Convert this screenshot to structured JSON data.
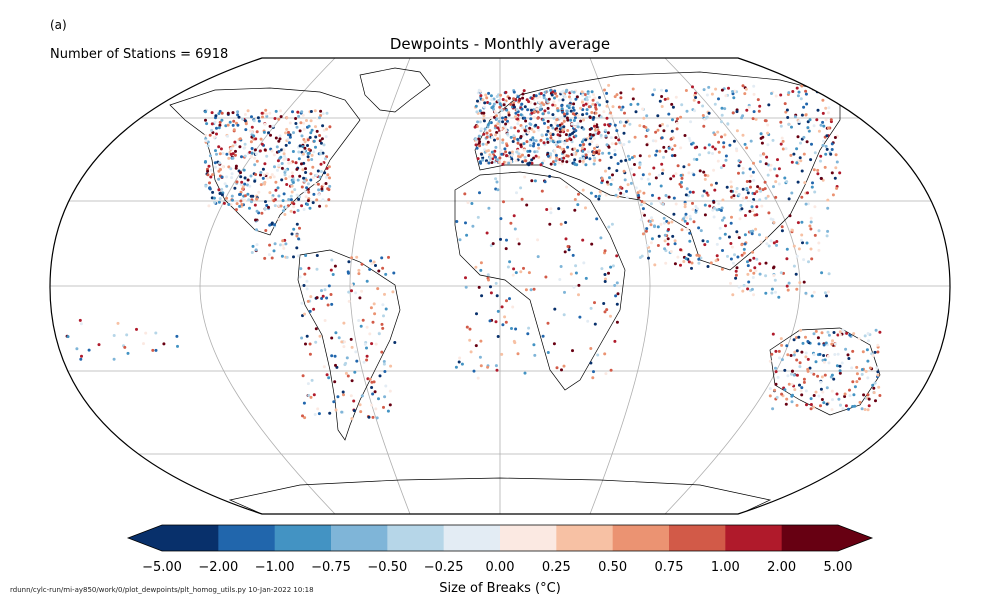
{
  "panel_label": "(a)",
  "station_count_text": "Number of Stations = 6918",
  "title": "Dewpoints - Monthly average",
  "colorbar": {
    "label": "Size of Breaks ($^\\circ$C)",
    "ticks": [
      "−5.00",
      "−2.00",
      "−1.00",
      "−0.75",
      "−0.50",
      "−0.25",
      "0.00",
      "0.25",
      "0.50",
      "0.75",
      "1.00",
      "2.00",
      "5.00"
    ],
    "colors": [
      "#08306b",
      "#2166ac",
      "#4393c3",
      "#7fb5d8",
      "#b6d6e8",
      "#e3ecf4",
      "#fbe9e2",
      "#f7c1a4",
      "#eb9372",
      "#d25a48",
      "#b01a2b",
      "#670012"
    ],
    "extend": "both"
  },
  "footer": "rdunn/cylc-run/mi-ay850/work/0/plot_dewpoints/plt_homog_utils.py   10-Jan-2022 10:18",
  "map": {
    "projection": "Robinson",
    "gridlines": true,
    "land_color": "#ffffff",
    "coastline_color": "#000000"
  }
}
